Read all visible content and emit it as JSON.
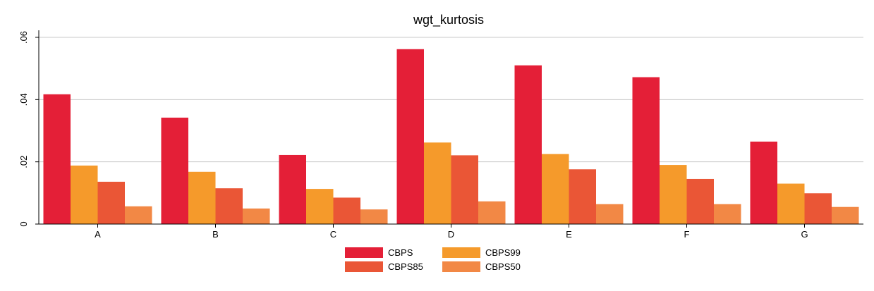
{
  "chart_data": {
    "type": "bar",
    "title": "wgt_kurtosis",
    "xlabel": "",
    "ylabel": "",
    "categories": [
      "A",
      "B",
      "C",
      "D",
      "E",
      "F",
      "G"
    ],
    "series": [
      {
        "name": "CBPS",
        "color": "#e41f37",
        "values": [
          0.0417,
          0.0342,
          0.0222,
          0.0562,
          0.051,
          0.0472,
          0.0265
        ]
      },
      {
        "name": "CBPS99",
        "color": "#f59a2b",
        "values": [
          0.0188,
          0.0168,
          0.0113,
          0.0262,
          0.0225,
          0.019,
          0.013
        ]
      },
      {
        "name": "CBPS85",
        "color": "#ea5636",
        "values": [
          0.0136,
          0.0115,
          0.0085,
          0.0221,
          0.0176,
          0.0145,
          0.0099
        ]
      },
      {
        "name": "CBPS50",
        "color": "#f28845",
        "values": [
          0.0057,
          0.005,
          0.0047,
          0.0073,
          0.0064,
          0.0064,
          0.0055
        ]
      }
    ],
    "ylim": [
      0,
      0.06
    ],
    "yticks": [
      0,
      0.02,
      0.04,
      0.06
    ],
    "ytick_labels": [
      "0",
      ".02",
      ".04",
      ".06"
    ],
    "grid": true,
    "legend_position": "bottom-center"
  }
}
